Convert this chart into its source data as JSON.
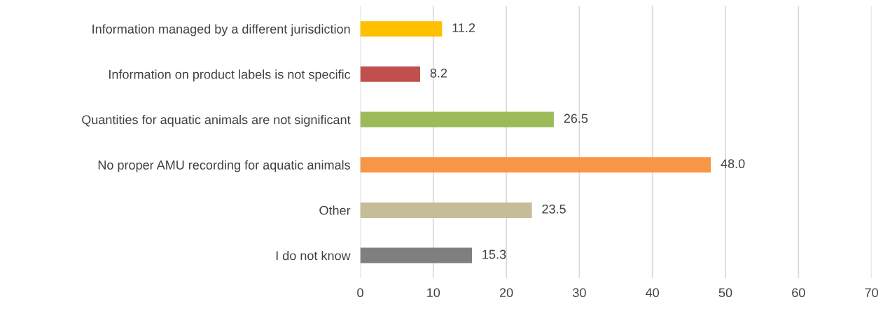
{
  "chart_data": {
    "type": "bar",
    "orientation": "horizontal",
    "categories": [
      "Information managed by a different jurisdiction",
      "Information on product labels is not specific",
      "Quantities for aquatic animals are not significant",
      "No proper AMU recording for aquatic animals",
      "Other",
      "I do not know"
    ],
    "values": [
      11.2,
      8.2,
      26.5,
      48.0,
      23.5,
      15.3
    ],
    "value_labels": [
      "11.2",
      "8.2",
      "26.5",
      "48.0",
      "23.5",
      "15.3"
    ],
    "colors": [
      "#ffc000",
      "#c0504d",
      "#9bbb59",
      "#f79646",
      "#c4bd97",
      "#7f7f7f"
    ],
    "xlim": [
      0,
      70
    ],
    "xticks": [
      0,
      10,
      20,
      30,
      40,
      50,
      60,
      70
    ],
    "grid": "x",
    "legend": false
  }
}
